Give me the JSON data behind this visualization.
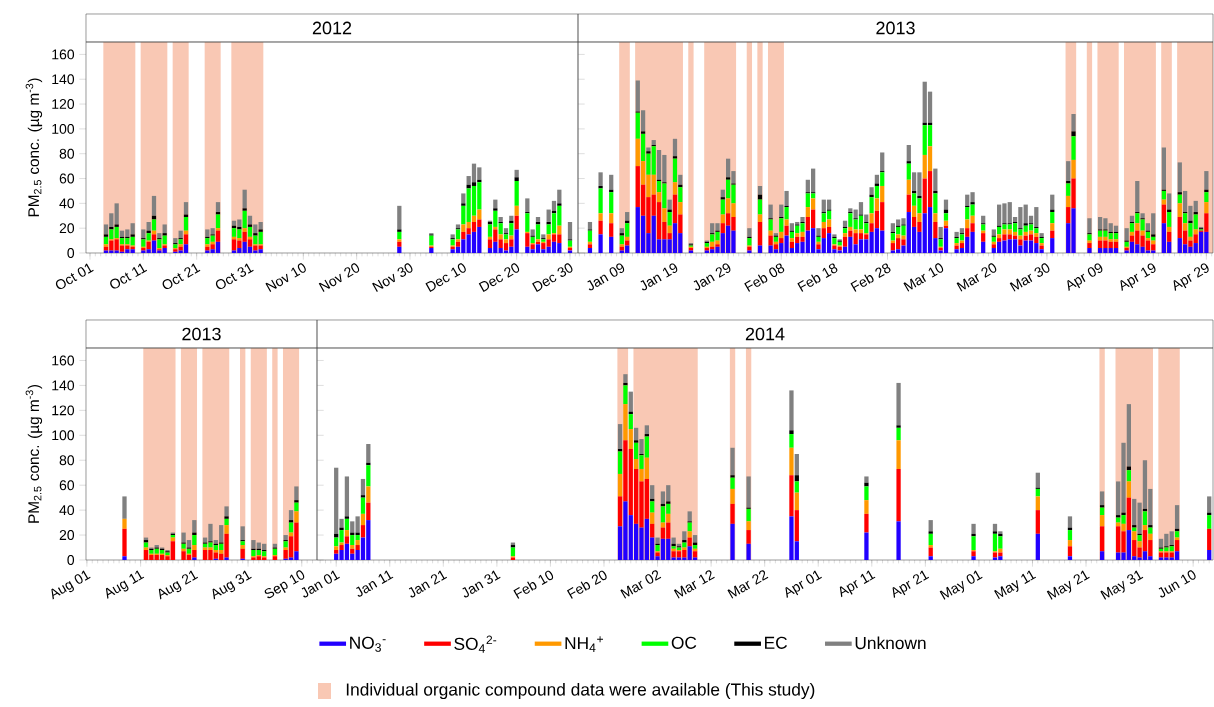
{
  "chart_data": [
    {
      "type": "bar",
      "stacked": true,
      "title": "2012",
      "ylabel": "PM$_{2.5}$ conc. (µg m$^{-3}$)",
      "x": [
        "2012-10-04",
        "2012-10-05",
        "2012-10-06",
        "2012-10-07",
        "2012-10-08",
        "2012-10-09",
        "2012-10-11",
        "2012-10-12",
        "2012-10-13",
        "2012-10-14",
        "2012-10-15",
        "2012-10-17",
        "2012-10-18",
        "2012-10-19",
        "2012-10-23",
        "2012-10-24",
        "2012-10-25",
        "2012-10-28",
        "2012-10-29",
        "2012-10-30",
        "2012-10-31",
        "2012-11-01",
        "2012-11-02",
        "2012-11-28",
        "2012-12-04",
        "2012-12-08",
        "2012-12-09",
        "2012-12-10",
        "2012-12-11",
        "2012-12-12",
        "2012-12-13",
        "2012-12-15",
        "2012-12-16",
        "2012-12-17",
        "2012-12-18",
        "2012-12-19",
        "2012-12-20",
        "2012-12-22",
        "2012-12-23",
        "2012-12-24",
        "2012-12-25",
        "2012-12-26",
        "2012-12-27",
        "2012-12-28",
        "2012-12-30"
      ],
      "series": [
        {
          "color": "#2200ff",
          "values": [
            2,
            2,
            2,
            1,
            3,
            3,
            2,
            3,
            10,
            2,
            4,
            1,
            2,
            7,
            2,
            3,
            9,
            2,
            4,
            9,
            5,
            2,
            3,
            5,
            4,
            3,
            5,
            11,
            15,
            17,
            21,
            4,
            9,
            4,
            2,
            5,
            19,
            5,
            3,
            7,
            3,
            5,
            9,
            8,
            2
          ]
        },
        {
          "color": "#ff0000",
          "values": [
            3,
            8,
            9,
            5,
            3,
            2,
            2,
            6,
            5,
            1,
            2,
            2,
            3,
            8,
            3,
            4,
            9,
            9,
            6,
            8,
            6,
            4,
            3,
            4,
            1,
            2,
            4,
            6,
            5,
            8,
            6,
            7,
            10,
            7,
            6,
            6,
            11,
            11,
            4,
            2,
            5,
            6,
            6,
            7,
            2
          ]
        },
        {
          "color": "#ff9900",
          "values": [
            2,
            1,
            1,
            1,
            1,
            1,
            1,
            1,
            3,
            1,
            1,
            1,
            2,
            3,
            2,
            2,
            2,
            2,
            2,
            3,
            2,
            1,
            1,
            2,
            1,
            1,
            2,
            6,
            5,
            5,
            8,
            2,
            2,
            4,
            3,
            3,
            8,
            1,
            1,
            2,
            1,
            4,
            1,
            7,
            1
          ]
        },
        {
          "color": "#00ff00",
          "values": [
            6,
            8,
            9,
            5,
            5,
            7,
            6,
            6,
            9,
            7,
            7,
            3,
            4,
            11,
            5,
            5,
            11,
            7,
            7,
            14,
            8,
            7,
            10,
            6,
            8,
            5,
            8,
            15,
            27,
            24,
            22,
            10,
            13,
            9,
            4,
            10,
            20,
            15,
            5,
            12,
            2,
            8,
            16,
            16,
            5
          ]
        },
        {
          "color": "#000000",
          "values": [
            2,
            2,
            2,
            1,
            1,
            2,
            1,
            2,
            3,
            1,
            2,
            1,
            1,
            2,
            1,
            1,
            2,
            2,
            2,
            2,
            2,
            2,
            2,
            2,
            1,
            1,
            1,
            2,
            3,
            3,
            2,
            2,
            2,
            1,
            1,
            2,
            3,
            1,
            1,
            2,
            1,
            2,
            2,
            2,
            1
          ]
        },
        {
          "color": "#808080",
          "values": [
            8,
            11,
            17,
            5,
            6,
            9,
            7,
            7,
            16,
            4,
            7,
            4,
            6,
            10,
            6,
            5,
            8,
            4,
            6,
            15,
            7,
            7,
            6,
            19,
            1,
            3,
            3,
            8,
            7,
            15,
            10,
            1,
            7,
            4,
            4,
            4,
            6,
            11,
            5,
            4,
            3,
            10,
            8,
            11,
            14
          ]
        }
      ],
      "xlim": [
        "2012-09-30T06:00",
        "2012-12-31T12:00"
      ],
      "ylim": [
        0,
        170
      ],
      "xticks": [
        {
          "value": "2012-10-01",
          "label": "Oct 01"
        },
        {
          "value": "2012-10-11",
          "label": "Oct 11"
        },
        {
          "value": "2012-10-21",
          "label": "Oct 21"
        },
        {
          "value": "2012-10-31",
          "label": "Oct 31"
        },
        {
          "value": "2012-11-10",
          "label": "Nov 10"
        },
        {
          "value": "2012-11-20",
          "label": "Nov 20"
        },
        {
          "value": "2012-11-30",
          "label": "Nov 30"
        },
        {
          "value": "2012-12-10",
          "label": "Dec 10"
        },
        {
          "value": "2012-12-20",
          "label": "Dec 20"
        },
        {
          "value": "2012-12-30",
          "label": "Dec 30"
        }
      ],
      "yticks": [
        0,
        20,
        40,
        60,
        80,
        100,
        120,
        140,
        160
      ],
      "bands": [
        {
          "axis": "x",
          "from": "2012-10-03T12:00",
          "to": "2012-10-09T12:00",
          "color": "#f9c8b4"
        },
        {
          "axis": "x",
          "from": "2012-10-10T12:00",
          "to": "2012-10-15T12:00",
          "color": "#f9c8b4"
        },
        {
          "axis": "x",
          "from": "2012-10-16T12:00",
          "to": "2012-10-19T12:00",
          "color": "#f9c8b4"
        },
        {
          "axis": "x",
          "from": "2012-10-22T12:00",
          "to": "2012-10-25T12:00",
          "color": "#f9c8b4"
        },
        {
          "axis": "x",
          "from": "2012-10-27T12:00",
          "to": "2012-11-02T12:00",
          "color": "#f9c8b4"
        }
      ]
    },
    {
      "type": "bar",
      "stacked": true,
      "title": "2013",
      "tick_labels": "x",
      "x": [
        "2013-01-03",
        "2013-01-05",
        "2013-01-07",
        "2013-01-09",
        "2013-01-10",
        "2013-01-12",
        "2013-01-13",
        "2013-01-14",
        "2013-01-15",
        "2013-01-16",
        "2013-01-17",
        "2013-01-18",
        "2013-01-19",
        "2013-01-20",
        "2013-01-22",
        "2013-01-25",
        "2013-01-26",
        "2013-01-27",
        "2013-01-28",
        "2013-01-29",
        "2013-01-30",
        "2013-02-02",
        "2013-02-04",
        "2013-02-06",
        "2013-02-07",
        "2013-02-08",
        "2013-02-09",
        "2013-02-10",
        "2013-02-11",
        "2013-02-12",
        "2013-02-13",
        "2013-02-14",
        "2013-02-15",
        "2013-02-16",
        "2013-02-17",
        "2013-02-18",
        "2013-02-19",
        "2013-02-20",
        "2013-02-21",
        "2013-02-22",
        "2013-02-23",
        "2013-02-24",
        "2013-02-25",
        "2013-02-26",
        "2013-02-27",
        "2013-03-01",
        "2013-03-02",
        "2013-03-03",
        "2013-03-04",
        "2013-03-05",
        "2013-03-06",
        "2013-03-07",
        "2013-03-08",
        "2013-03-09",
        "2013-03-10",
        "2013-03-11",
        "2013-03-13",
        "2013-03-14",
        "2013-03-15",
        "2013-03-16",
        "2013-03-18",
        "2013-03-20",
        "2013-03-21",
        "2013-03-22",
        "2013-03-23",
        "2013-03-24",
        "2013-03-25",
        "2013-03-26",
        "2013-03-27",
        "2013-03-28",
        "2013-03-29",
        "2013-03-31",
        "2013-04-03",
        "2013-04-04",
        "2013-04-07",
        "2013-04-09",
        "2013-04-10",
        "2013-04-11",
        "2013-04-12",
        "2013-04-14",
        "2013-04-15",
        "2013-04-16",
        "2013-04-17",
        "2013-04-18",
        "2013-04-19",
        "2013-04-21",
        "2013-04-22",
        "2013-04-24",
        "2013-04-25",
        "2013-04-26",
        "2013-04-27",
        "2013-04-28",
        "2013-04-29"
      ],
      "series": [
        {
          "color": "#2200ff",
          "values": [
            4,
            15,
            13,
            2,
            6,
            37,
            30,
            16,
            30,
            11,
            11,
            11,
            24,
            16,
            2,
            2,
            3,
            5,
            16,
            22,
            18,
            2,
            6,
            6,
            3,
            8,
            14,
            4,
            8,
            9,
            18,
            20,
            3,
            12,
            16,
            3,
            2,
            5,
            13,
            7,
            11,
            11,
            17,
            20,
            18,
            2,
            3,
            6,
            33,
            21,
            17,
            32,
            37,
            12,
            2,
            20,
            3,
            4,
            13,
            17,
            9,
            4,
            9,
            10,
            11,
            11,
            6,
            10,
            10,
            8,
            3,
            12,
            24,
            36,
            4,
            4,
            4,
            4,
            4,
            2,
            9,
            7,
            5,
            2,
            2,
            24,
            9,
            12,
            7,
            5,
            8,
            17,
            17
          ]
        },
        {
          "color": "#ff0000",
          "values": [
            3,
            11,
            11,
            3,
            4,
            33,
            25,
            29,
            17,
            30,
            14,
            5,
            23,
            15,
            2,
            2,
            2,
            2,
            8,
            10,
            11,
            3,
            19,
            8,
            4,
            4,
            8,
            5,
            5,
            4,
            11,
            15,
            4,
            8,
            5,
            3,
            3,
            8,
            5,
            9,
            5,
            4,
            7,
            14,
            23,
            6,
            9,
            5,
            14,
            8,
            8,
            28,
            29,
            13,
            2,
            2,
            3,
            4,
            7,
            7,
            7,
            3,
            3,
            5,
            4,
            3,
            5,
            4,
            5,
            5,
            3,
            6,
            13,
            24,
            4,
            6,
            6,
            5,
            5,
            2,
            5,
            11,
            9,
            8,
            5,
            15,
            8,
            17,
            11,
            5,
            7,
            1,
            15
          ]
        },
        {
          "color": "#ff9900",
          "values": [
            2,
            6,
            8,
            2,
            3,
            22,
            19,
            18,
            16,
            8,
            11,
            6,
            10,
            10,
            1,
            1,
            4,
            3,
            7,
            12,
            11,
            1,
            6,
            4,
            2,
            5,
            5,
            3,
            3,
            4,
            8,
            9,
            2,
            5,
            6,
            1,
            1,
            3,
            3,
            3,
            3,
            1,
            8,
            10,
            13,
            2,
            3,
            3,
            12,
            9,
            7,
            19,
            20,
            7,
            1,
            4,
            2,
            2,
            7,
            6,
            2,
            2,
            3,
            4,
            4,
            3,
            3,
            3,
            3,
            3,
            2,
            6,
            9,
            15,
            2,
            3,
            3,
            2,
            2,
            1,
            3,
            6,
            4,
            2,
            3,
            4,
            4,
            11,
            6,
            3,
            4,
            0,
            9
          ]
        },
        {
          "color": "#00ff00",
          "values": [
            9,
            20,
            17,
            7,
            11,
            21,
            22,
            17,
            23,
            9,
            20,
            11,
            19,
            12,
            1,
            3,
            6,
            7,
            12,
            15,
            15,
            6,
            12,
            9,
            4,
            11,
            10,
            5,
            6,
            7,
            11,
            4,
            4,
            7,
            7,
            5,
            3,
            4,
            11,
            8,
            11,
            8,
            13,
            10,
            11,
            6,
            6,
            8,
            13,
            10,
            12,
            24,
            17,
            16,
            6,
            6,
            4,
            5,
            10,
            9,
            5,
            4,
            6,
            4,
            4,
            7,
            5,
            5,
            5,
            4,
            4,
            9,
            10,
            19,
            5,
            5,
            5,
            5,
            5,
            4,
            7,
            8,
            9,
            5,
            3,
            7,
            12,
            7,
            8,
            11,
            12,
            1,
            8
          ]
        },
        {
          "color": "#000000",
          "values": [
            1,
            2,
            2,
            2,
            2,
            1,
            2,
            2,
            1,
            1,
            1,
            2,
            2,
            2,
            1,
            1,
            1,
            1,
            2,
            2,
            1,
            1,
            4,
            1,
            1,
            1,
            1,
            1,
            1,
            1,
            1,
            1,
            1,
            1,
            1,
            1,
            1,
            1,
            1,
            1,
            1,
            1,
            2,
            2,
            1,
            1,
            1,
            1,
            2,
            2,
            2,
            2,
            2,
            2,
            1,
            3,
            1,
            1,
            1,
            2,
            1,
            1,
            1,
            1,
            1,
            1,
            1,
            2,
            1,
            1,
            1,
            2,
            2,
            4,
            1,
            1,
            1,
            1,
            1,
            1,
            1,
            1,
            1,
            1,
            2,
            1,
            2,
            2,
            1,
            2,
            2,
            1,
            2
          ]
        },
        {
          "color": "#808080",
          "values": [
            6,
            11,
            12,
            4,
            7,
            25,
            17,
            3,
            4,
            24,
            22,
            8,
            14,
            8,
            1,
            1,
            8,
            6,
            6,
            15,
            10,
            7,
            7,
            11,
            2,
            10,
            12,
            6,
            2,
            4,
            10,
            19,
            6,
            10,
            8,
            2,
            1,
            5,
            3,
            7,
            10,
            6,
            6,
            7,
            15,
            7,
            5,
            5,
            13,
            15,
            19,
            33,
            25,
            18,
            9,
            8,
            4,
            4,
            9,
            8,
            6,
            5,
            17,
            16,
            17,
            4,
            17,
            15,
            6,
            16,
            3,
            12,
            16,
            14,
            12,
            10,
            9,
            7,
            5,
            10,
            5,
            25,
            4,
            6,
            17,
            34,
            13,
            24,
            17,
            12,
            9,
            1,
            15
          ]
        }
      ],
      "xlim": [
        "2012-12-31T18:00",
        "2013-04-30T06:00"
      ],
      "ylim": [
        0,
        170
      ],
      "xticks": [
        {
          "value": "2013-01-09",
          "label": "Jan 09"
        },
        {
          "value": "2013-01-19",
          "label": "Jan 19"
        },
        {
          "value": "2013-01-29",
          "label": "Jan 29"
        },
        {
          "value": "2013-02-08",
          "label": "Feb 08"
        },
        {
          "value": "2013-02-18",
          "label": "Feb 18"
        },
        {
          "value": "2013-02-28",
          "label": "Feb 28"
        },
        {
          "value": "2013-03-10",
          "label": "Mar 10"
        },
        {
          "value": "2013-03-20",
          "label": "Mar 20"
        },
        {
          "value": "2013-03-30",
          "label": "Mar 30"
        },
        {
          "value": "2013-04-09",
          "label": "Apr 09"
        },
        {
          "value": "2013-04-19",
          "label": "Apr 19"
        },
        {
          "value": "2013-04-29",
          "label": "Apr 29"
        }
      ],
      "yticks": [
        0,
        20,
        40,
        60,
        80,
        100,
        120,
        140,
        160
      ],
      "bands": [
        {
          "axis": "x",
          "from": "2013-01-08T12:00",
          "to": "2013-01-10T12:00",
          "color": "#f9c8b4"
        },
        {
          "axis": "x",
          "from": "2013-01-11T12:00",
          "to": "2013-01-20T12:00",
          "color": "#f9c8b4"
        },
        {
          "axis": "x",
          "from": "2013-01-21T12:00",
          "to": "2013-01-22T12:00",
          "color": "#f9c8b4"
        },
        {
          "axis": "x",
          "from": "2013-01-24T12:00",
          "to": "2013-01-30T12:00",
          "color": "#f9c8b4"
        },
        {
          "axis": "x",
          "from": "2013-02-01T12:00",
          "to": "2013-02-02T12:00",
          "color": "#f9c8b4"
        },
        {
          "axis": "x",
          "from": "2013-02-03T12:00",
          "to": "2013-02-04T12:00",
          "color": "#f9c8b4"
        },
        {
          "axis": "x",
          "from": "2013-02-05T12:00",
          "to": "2013-02-08T12:00",
          "color": "#f9c8b4"
        },
        {
          "axis": "x",
          "from": "2013-04-02T12:00",
          "to": "2013-04-04T12:00",
          "color": "#f9c8b4"
        },
        {
          "axis": "x",
          "from": "2013-04-06T12:00",
          "to": "2013-04-07T12:00",
          "color": "#f9c8b4"
        },
        {
          "axis": "x",
          "from": "2013-04-08T12:00",
          "to": "2013-04-12T12:00",
          "color": "#f9c8b4"
        },
        {
          "axis": "x",
          "from": "2013-04-13T12:00",
          "to": "2013-04-19T12:00",
          "color": "#f9c8b4"
        },
        {
          "axis": "x",
          "from": "2013-04-20T12:00",
          "to": "2013-04-22T12:00",
          "color": "#f9c8b4"
        },
        {
          "axis": "x",
          "from": "2013-04-23T12:00",
          "to": "2013-04-30T06:00",
          "color": "#f9c8b4"
        }
      ]
    },
    {
      "type": "bar",
      "stacked": true,
      "title": "2013",
      "ylabel": "PM$_{2.5}$ conc. (µg m$^{-3}$)",
      "x": [
        "2013-08-08",
        "2013-08-12",
        "2013-08-13",
        "2013-08-14",
        "2013-08-15",
        "2013-08-16",
        "2013-08-17",
        "2013-08-19",
        "2013-08-20",
        "2013-08-21",
        "2013-08-23",
        "2013-08-24",
        "2013-08-25",
        "2013-08-26",
        "2013-08-27",
        "2013-08-30",
        "2013-09-01",
        "2013-09-02",
        "2013-09-03",
        "2013-09-05",
        "2013-09-07",
        "2013-09-08",
        "2013-09-09"
      ],
      "series": [
        {
          "color": "#2200ff",
          "values": [
            3,
            0,
            0,
            0,
            0,
            0,
            0,
            0,
            0,
            2,
            0,
            0,
            1,
            0,
            2,
            1,
            0,
            0,
            0,
            0,
            1,
            2,
            7
          ]
        },
        {
          "color": "#ff0000",
          "values": [
            22,
            8,
            4,
            4,
            4,
            3,
            15,
            7,
            4,
            6,
            8,
            8,
            5,
            5,
            19,
            8,
            2,
            3,
            2,
            3,
            7,
            17,
            23
          ]
        },
        {
          "color": "#ff9900",
          "values": [
            8,
            2,
            1,
            1,
            1,
            1,
            3,
            2,
            1,
            4,
            2,
            2,
            2,
            3,
            7,
            3,
            1,
            1,
            1,
            1,
            2,
            3,
            9
          ]
        },
        {
          "color": "#00ff00",
          "values": [
            0,
            4,
            3,
            4,
            3,
            2,
            2,
            4,
            4,
            8,
            3,
            4,
            4,
            5,
            5,
            3,
            5,
            4,
            4,
            5,
            5,
            8,
            7
          ]
        },
        {
          "color": "#000000",
          "values": [
            0,
            2,
            1,
            1,
            1,
            1,
            1,
            1,
            1,
            2,
            1,
            1,
            1,
            1,
            2,
            1,
            1,
            1,
            1,
            1,
            1,
            2,
            2
          ]
        },
        {
          "color": "#808080",
          "values": [
            18,
            2,
            1,
            2,
            1,
            1,
            1,
            8,
            6,
            10,
            4,
            14,
            3,
            14,
            8,
            11,
            7,
            5,
            5,
            3,
            4,
            8,
            11
          ]
        }
      ],
      "xlim": [
        "2013-07-31T20:00",
        "2013-09-12T20:00"
      ],
      "ylim": [
        0,
        170
      ],
      "xticks": [
        {
          "value": "2013-08-01",
          "label": "Aug 01"
        },
        {
          "value": "2013-08-11",
          "label": "Aug 11"
        },
        {
          "value": "2013-08-21",
          "label": "Aug 21"
        },
        {
          "value": "2013-08-31",
          "label": "Aug 31"
        },
        {
          "value": "2013-09-10",
          "label": "Sep 10"
        }
      ],
      "yticks": [
        0,
        20,
        40,
        60,
        80,
        100,
        120,
        140,
        160
      ],
      "bands": [
        {
          "axis": "x",
          "from": "2013-08-11T12:00",
          "to": "2013-08-17T12:00",
          "color": "#f9c8b4"
        },
        {
          "axis": "x",
          "from": "2013-08-18T12:00",
          "to": "2013-08-21T12:00",
          "color": "#f9c8b4"
        },
        {
          "axis": "x",
          "from": "2013-08-22T12:00",
          "to": "2013-08-27T12:00",
          "color": "#f9c8b4"
        },
        {
          "axis": "x",
          "from": "2013-08-29T12:00",
          "to": "2013-08-30T12:00",
          "color": "#f9c8b4"
        },
        {
          "axis": "x",
          "from": "2013-08-31T12:00",
          "to": "2013-09-03T12:00",
          "color": "#f9c8b4"
        },
        {
          "axis": "x",
          "from": "2013-09-04T12:00",
          "to": "2013-09-05T12:00",
          "color": "#f9c8b4"
        },
        {
          "axis": "x",
          "from": "2013-09-06T12:00",
          "to": "2013-09-09T12:00",
          "color": "#f9c8b4"
        }
      ]
    },
    {
      "type": "bar",
      "stacked": true,
      "title": "2014",
      "tick_labels": "x",
      "legend": "bottom",
      "x": [
        "2014-01-01",
        "2014-01-02",
        "2014-01-03",
        "2014-01-04",
        "2014-01-05",
        "2014-01-06",
        "2014-01-07",
        "2014-02-03",
        "2014-02-23",
        "2014-02-24",
        "2014-02-25",
        "2014-02-26",
        "2014-02-27",
        "2014-02-28",
        "2014-03-01",
        "2014-03-02",
        "2014-03-03",
        "2014-03-04",
        "2014-03-05",
        "2014-03-06",
        "2014-03-07",
        "2014-03-08",
        "2014-03-09",
        "2014-03-16",
        "2014-03-19",
        "2014-03-27",
        "2014-03-28",
        "2014-04-10",
        "2014-04-16",
        "2014-04-22",
        "2014-04-30",
        "2014-05-04",
        "2014-05-05",
        "2014-05-12",
        "2014-05-18",
        "2014-05-24",
        "2014-05-27",
        "2014-05-28",
        "2014-05-29",
        "2014-05-30",
        "2014-05-31",
        "2014-06-01",
        "2014-06-02",
        "2014-06-04",
        "2014-06-05",
        "2014-06-06",
        "2014-06-07",
        "2014-06-13"
      ],
      "series": [
        {
          "name": "NO$_{3}$$^{-}$",
          "color": "#2200ff",
          "values": [
            5,
            8,
            13,
            5,
            8,
            18,
            32,
            0,
            27,
            47,
            36,
            29,
            26,
            33,
            18,
            3,
            17,
            17,
            2,
            2,
            2,
            11,
            2,
            29,
            13,
            35,
            15,
            22,
            31,
            3,
            3,
            2,
            3,
            21,
            3,
            7,
            6,
            6,
            24,
            3,
            2,
            7,
            3,
            2,
            2,
            2,
            7,
            8
          ]
        },
        {
          "name": "SO$_{4}$$^{2-}$",
          "color": "#ff0000",
          "values": [
            3,
            4,
            6,
            4,
            4,
            10,
            14,
            2,
            24,
            49,
            53,
            44,
            37,
            32,
            11,
            3,
            9,
            13,
            5,
            5,
            6,
            7,
            5,
            16,
            11,
            33,
            25,
            15,
            42,
            7,
            4,
            4,
            3,
            19,
            8,
            20,
            21,
            17,
            26,
            13,
            8,
            17,
            13,
            4,
            4,
            4,
            9,
            17
          ]
        },
        {
          "name": "NH$_{4}$$^{+}$",
          "color": "#ff9900",
          "values": [
            3,
            2,
            5,
            3,
            4,
            9,
            13,
            1,
            18,
            29,
            16,
            8,
            10,
            17,
            9,
            1,
            4,
            7,
            2,
            1,
            2,
            5,
            2,
            12,
            7,
            22,
            14,
            11,
            23,
            2,
            1,
            1,
            3,
            11,
            5,
            9,
            3,
            6,
            13,
            7,
            5,
            4,
            5,
            1,
            1,
            1,
            2,
            0
          ]
        },
        {
          "name": "OC",
          "color": "#00ff00",
          "values": [
            7,
            10,
            9,
            8,
            4,
            13,
            17,
            7,
            18,
            15,
            12,
            13,
            11,
            17,
            9,
            5,
            13,
            8,
            2,
            2,
            4,
            7,
            3,
            9,
            10,
            11,
            9,
            11,
            10,
            9,
            11,
            14,
            10,
            6,
            8,
            6,
            4,
            7,
            9,
            3,
            5,
            11,
            5,
            2,
            3,
            4,
            5,
            11
          ]
        },
        {
          "name": "EC",
          "color": "#000000",
          "values": [
            3,
            2,
            2,
            2,
            2,
            2,
            2,
            2,
            2,
            2,
            2,
            2,
            1,
            2,
            2,
            1,
            2,
            2,
            2,
            1,
            2,
            1,
            2,
            2,
            1,
            3,
            5,
            3,
            2,
            2,
            2,
            2,
            2,
            1,
            2,
            2,
            2,
            2,
            3,
            2,
            1,
            2,
            2,
            1,
            1,
            1,
            2,
            2
          ]
        },
        {
          "name": "Unknown",
          "color": "#808080",
          "values": [
            53,
            7,
            32,
            9,
            13,
            13,
            15,
            2,
            20,
            7,
            16,
            10,
            12,
            7,
            11,
            5,
            10,
            13,
            5,
            2,
            7,
            8,
            6,
            22,
            25,
            32,
            17,
            5,
            34,
            9,
            8,
            6,
            2,
            12,
            9,
            11,
            27,
            56,
            50,
            21,
            25,
            39,
            29,
            7,
            10,
            11,
            19,
            13
          ]
        }
      ],
      "xlim": [
        "2013-12-28T10:00",
        "2014-06-13T17:00"
      ],
      "ylim": [
        0,
        170
      ],
      "xticks": [
        {
          "value": "2014-01-01",
          "label": "Jan 01"
        },
        {
          "value": "2014-01-11",
          "label": "Jan 11"
        },
        {
          "value": "2014-01-21",
          "label": "Jan 21"
        },
        {
          "value": "2014-01-31",
          "label": "Jan 31"
        },
        {
          "value": "2014-02-10",
          "label": "Feb 10"
        },
        {
          "value": "2014-02-20",
          "label": "Feb 20"
        },
        {
          "value": "2014-03-02",
          "label": "Mar 02"
        },
        {
          "value": "2014-03-12",
          "label": "Mar 12"
        },
        {
          "value": "2014-03-22",
          "label": "Mar 22"
        },
        {
          "value": "2014-04-01",
          "label": "Apr 01"
        },
        {
          "value": "2014-04-11",
          "label": "Apr 11"
        },
        {
          "value": "2014-04-21",
          "label": "Apr 21"
        },
        {
          "value": "2014-05-01",
          "label": "May 01"
        },
        {
          "value": "2014-05-11",
          "label": "May 11"
        },
        {
          "value": "2014-05-21",
          "label": "May 21"
        },
        {
          "value": "2014-05-31",
          "label": "May 31"
        },
        {
          "value": "2014-06-10",
          "label": "Jun 10"
        }
      ],
      "yticks": [
        0,
        20,
        40,
        60,
        80,
        100,
        120,
        140,
        160
      ],
      "bands": [
        {
          "axis": "x",
          "from": "2014-02-22T12:00",
          "to": "2014-02-24T12:00",
          "color": "#f9c8b4",
          "label": "Individual organic compound data were available (This study)"
        },
        {
          "axis": "x",
          "from": "2014-02-25T12:00",
          "to": "2014-03-09T12:00",
          "color": "#f9c8b4"
        },
        {
          "axis": "x",
          "from": "2014-03-15T12:00",
          "to": "2014-03-16T12:00",
          "color": "#f9c8b4"
        },
        {
          "axis": "x",
          "from": "2014-03-18T12:00",
          "to": "2014-03-19T12:00",
          "color": "#f9c8b4"
        },
        {
          "axis": "x",
          "from": "2014-05-23T12:00",
          "to": "2014-05-24T12:00",
          "color": "#f9c8b4"
        },
        {
          "axis": "x",
          "from": "2014-05-26T12:00",
          "to": "2014-06-02T12:00",
          "color": "#f9c8b4"
        },
        {
          "axis": "x",
          "from": "2014-06-03T12:00",
          "to": "2014-06-07T12:00",
          "color": "#f9c8b4"
        }
      ]
    }
  ]
}
